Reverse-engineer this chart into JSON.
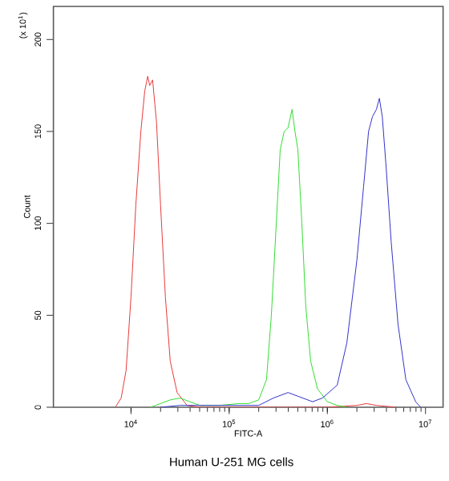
{
  "chart_data": {
    "type": "line",
    "title": "Human U-251 MG cells",
    "xlabel": "FITC-A",
    "ylabel": "Count",
    "annotations": [
      "(x 10$^{1}$)"
    ],
    "log": "x",
    "grid": false,
    "marker": "none",
    "line_style": "solid",
    "xlim": [
      1620,
      15100000
    ],
    "ylim": [
      0,
      218
    ],
    "xticks": [
      {
        "value": 10000,
        "label": "10$^{4}$"
      },
      {
        "value": 100000,
        "label": "10$^{5}$"
      },
      {
        "value": 1000000,
        "label": "10$^{6}$"
      },
      {
        "value": 10000000,
        "label": "10$^{7}$"
      }
    ],
    "yticks": [
      0,
      50,
      100,
      150,
      200
    ],
    "series": [
      {
        "color": "#e83a3a",
        "x": [
          6920,
          7940,
          8910,
          10000,
          11200,
          12600,
          13800,
          14800,
          15500,
          16600,
          18200,
          20000,
          22400,
          25100,
          29500,
          37200,
          50100,
          1000000,
          2000000,
          2510000,
          3160000,
          5010000
        ],
        "values": [
          0,
          5,
          20,
          60,
          110,
          150,
          172,
          180,
          175,
          178,
          155,
          110,
          60,
          25,
          8,
          1,
          0,
          0,
          1,
          2,
          1,
          0
        ]
      },
      {
        "color": "#33dd33",
        "x": [
          15800,
          20000,
          25100,
          31600,
          39800,
          50100,
          79400,
          126000,
          158000,
          200000,
          240000,
          269000,
          302000,
          331000,
          363000,
          398000,
          437000,
          468000,
          501000,
          550000,
          603000,
          676000,
          794000,
          1000000,
          1260000,
          1580000
        ],
        "values": [
          0,
          2,
          4,
          5,
          3,
          1,
          1,
          2,
          2,
          4,
          15,
          50,
          100,
          140,
          150,
          152,
          162,
          150,
          140,
          100,
          55,
          25,
          10,
          3,
          1,
          0
        ]
      },
      {
        "color": "#3333cc",
        "x": [
          20000,
          31600,
          100000,
          200000,
          282000,
          398000,
          501000,
          708000,
          891000,
          1260000,
          1580000,
          2000000,
          2340000,
          2630000,
          2880000,
          3160000,
          3390000,
          3630000,
          3980000,
          4470000,
          5250000,
          6310000,
          7940000,
          8910000
        ],
        "values": [
          0,
          1,
          1,
          1,
          5,
          8,
          6,
          3,
          5,
          12,
          35,
          80,
          120,
          150,
          158,
          162,
          168,
          158,
          130,
          90,
          45,
          15,
          3,
          0
        ]
      }
    ]
  }
}
